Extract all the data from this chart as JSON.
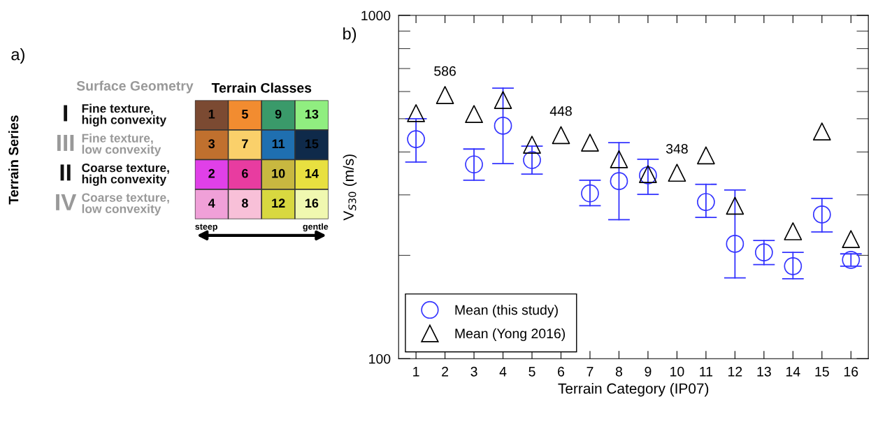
{
  "chart_data": [
    {
      "type": "heatmap",
      "title": "Terrain Classes",
      "ylabel": "Terrain Series",
      "categories": [
        null,
        null,
        null,
        null
      ],
      "y_categories": [
        "I",
        "III",
        "II",
        "IV"
      ],
      "y2_categories": [
        "Fine texture,\nhigh convexity",
        "Fine texture,\nlow convexity",
        "Coarse texture,\nhigh convexity",
        "Coarse texture,\nlow convexity"
      ],
      "cells": [
        [
          1,
          5,
          9,
          13
        ],
        [
          3,
          7,
          11,
          15
        ],
        [
          2,
          6,
          10,
          14
        ],
        [
          4,
          8,
          12,
          16
        ]
      ],
      "colors": [
        "#7b4a32",
        "#f28c30",
        "#3a9a6a",
        "#90ee80",
        "#c0702e",
        "#fad06a",
        "#1f6fb0",
        "#0f2a4a",
        "#e040e8",
        "#e83ca0",
        "#c8b840",
        "#e8e040",
        "#f0a0d8",
        "#f8c0d8",
        "#d8d840",
        "#f0f8b0"
      ],
      "data_labels": true,
      "annotations": [
        "a)",
        "Surface Geometry",
        "steep",
        "gentle"
      ]
    },
    {
      "type": "scatter",
      "xlabel": "Terrain Category (IP07)",
      "ylabel": "V$_{S30}$ (m/s)",
      "log": "y",
      "categories": [
        "1",
        "2",
        "3",
        "4",
        "5",
        "6",
        "7",
        "8",
        "9",
        "10",
        "11",
        "12",
        "13",
        "14",
        "15",
        "16"
      ],
      "ylim": [
        100,
        1000
      ],
      "yticks": [
        100,
        1000
      ],
      "series": [
        {
          "name": "Mean (this study)",
          "color": "#3333ff",
          "marker": "circle",
          "values": [
            436,
            null,
            368,
            477,
            379,
            null,
            303,
            329,
            342,
            null,
            286,
            216,
            204,
            186,
            263,
            194
          ],
          "errors": [
            [
              374,
              500
            ],
            null,
            [
              331,
              408
            ],
            [
              370,
              614
            ],
            [
              345,
              416
            ],
            null,
            [
              279,
              331
            ],
            [
              254,
              426
            ],
            [
              301,
              381
            ],
            null,
            [
              258,
              322
            ],
            [
              172,
              310
            ],
            [
              188,
              221
            ],
            [
              171,
              204
            ],
            [
              234,
              293
            ],
            [
              186,
              202
            ]
          ]
        },
        {
          "name": "Mean (Yong 2016)",
          "color": "#000000",
          "marker": "triangle",
          "values": [
            519,
            586,
            516,
            567,
            420,
            448,
            426,
            381,
            345,
            348,
            391,
            279,
            null,
            235,
            459,
            223
          ],
          "value_labels": [
            null,
            "586",
            null,
            null,
            null,
            "448",
            null,
            null,
            null,
            "348",
            null,
            null,
            null,
            null,
            null,
            null
          ]
        }
      ],
      "legend": "bottom left",
      "grid": false,
      "annotations": [
        "b)"
      ]
    }
  ]
}
